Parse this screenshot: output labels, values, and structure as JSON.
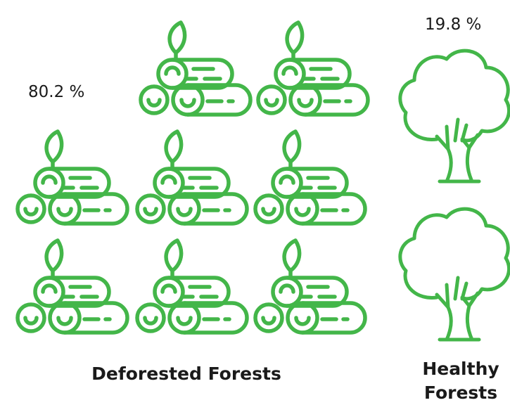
{
  "chart_data": {
    "type": "pictogram",
    "categories": [
      "Deforested Forests",
      "Healthy Forests"
    ],
    "values": [
      80.2,
      19.8
    ],
    "value_labels": [
      "80.2 %",
      "19.8 %"
    ],
    "color": "#43b649"
  }
}
